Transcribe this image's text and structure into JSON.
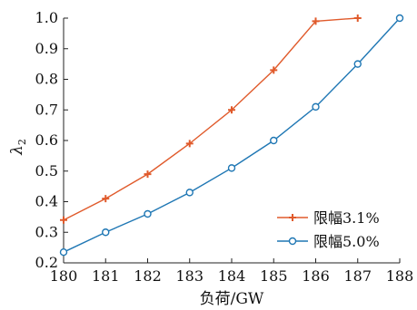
{
  "chart_data": {
    "type": "line",
    "xlabel": "负荷/GW",
    "ylabel_symbol": "λ",
    "ylabel_subscript": "2",
    "x": [
      180,
      181,
      182,
      183,
      184,
      185,
      186,
      187,
      188
    ],
    "xlim": [
      180,
      188
    ],
    "ylim": [
      0.2,
      1.0
    ],
    "x_ticks": [
      "180",
      "181",
      "182",
      "183",
      "184",
      "185",
      "186",
      "187",
      "188"
    ],
    "y_ticks": [
      "0.2",
      "0.3",
      "0.4",
      "0.5",
      "0.6",
      "0.7",
      "0.8",
      "0.9",
      "1.0"
    ],
    "grid": false,
    "legend_position": "bottom-right",
    "series": [
      {
        "name": "限幅3.1%",
        "color": "#e05a2b",
        "marker": "plus",
        "x": [
          180,
          181,
          182,
          183,
          184,
          185,
          186,
          187
        ],
        "values": [
          0.34,
          0.41,
          0.49,
          0.59,
          0.7,
          0.83,
          0.99,
          1.0
        ]
      },
      {
        "name": "限幅5.0%",
        "color": "#1f77b4",
        "marker": "circle",
        "x": [
          180,
          181,
          182,
          183,
          184,
          185,
          186,
          187,
          188
        ],
        "values": [
          0.235,
          0.3,
          0.36,
          0.43,
          0.51,
          0.6,
          0.71,
          0.85,
          1.0
        ]
      }
    ]
  }
}
